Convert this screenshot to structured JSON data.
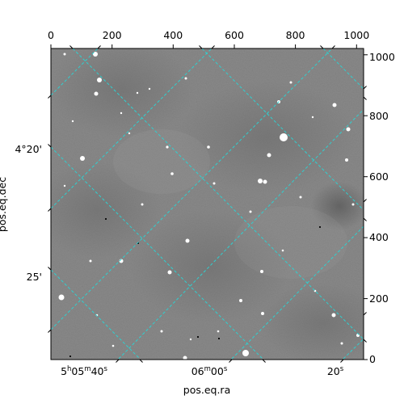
{
  "figure": {
    "x_label": "pos.eq.ra",
    "y_label": "pos.eq.dec",
    "pixel_x_ticks": [
      "0",
      "200",
      "400",
      "600",
      "800",
      "1000"
    ],
    "pixel_y_ticks": [
      "0",
      "200",
      "400",
      "600",
      "800",
      "1000"
    ],
    "dec_ticks": [
      "4°20'",
      "25'"
    ],
    "ra_ticks": [
      {
        "label": "5h05m40s",
        "h": "5",
        "m": "05",
        "s": "40"
      },
      {
        "label": "06m00s",
        "m": "06",
        "s": "00"
      },
      {
        "label": "20s",
        "s": "20"
      }
    ],
    "grid_color": "#2fd0d0",
    "image_style": "grayscale"
  }
}
